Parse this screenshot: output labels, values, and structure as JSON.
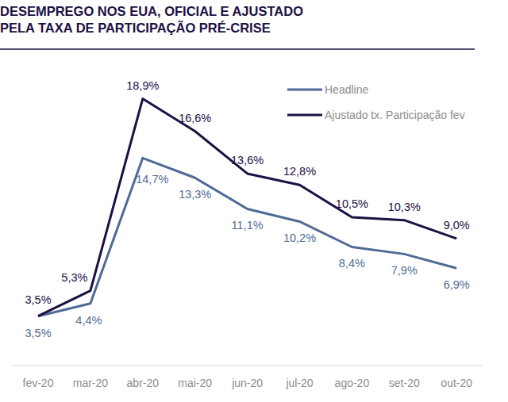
{
  "chart_data": {
    "type": "line",
    "title": "DESEMPREGO NOS EUA, OFICIAL E AJUSTADO\nPELA TAXA DE PARTICIPAÇÃO PRÉ-CRISE",
    "categories": [
      "fev-20",
      "mar-20",
      "abr-20",
      "mai-20",
      "jun-20",
      "jul-20",
      "ago-20",
      "set-20",
      "out-20"
    ],
    "series": [
      {
        "name": "Headline",
        "color": "#4f6a96",
        "values": [
          3.5,
          4.4,
          14.7,
          13.3,
          11.1,
          10.2,
          8.4,
          7.9,
          6.9
        ],
        "value_labels": [
          "3,5%",
          "4,4%",
          "14,7%",
          "13,3%",
          "11,1%",
          "10,2%",
          "8,4%",
          "7,9%",
          "6,9%"
        ]
      },
      {
        "name": "Ajustado tx. Participação fev",
        "color": "#1d1044",
        "values": [
          3.5,
          5.3,
          18.9,
          16.6,
          13.6,
          12.8,
          10.5,
          10.3,
          9.0
        ],
        "value_labels": [
          "3,5%",
          "5,3%",
          "18,9%",
          "16,6%",
          "13,6%",
          "12,8%",
          "10,5%",
          "10,3%",
          "9,0%"
        ]
      }
    ],
    "ylim": [
      0,
      20
    ],
    "data_labels": true,
    "tick_labels": "x",
    "grid": false,
    "legend": "top-right"
  }
}
